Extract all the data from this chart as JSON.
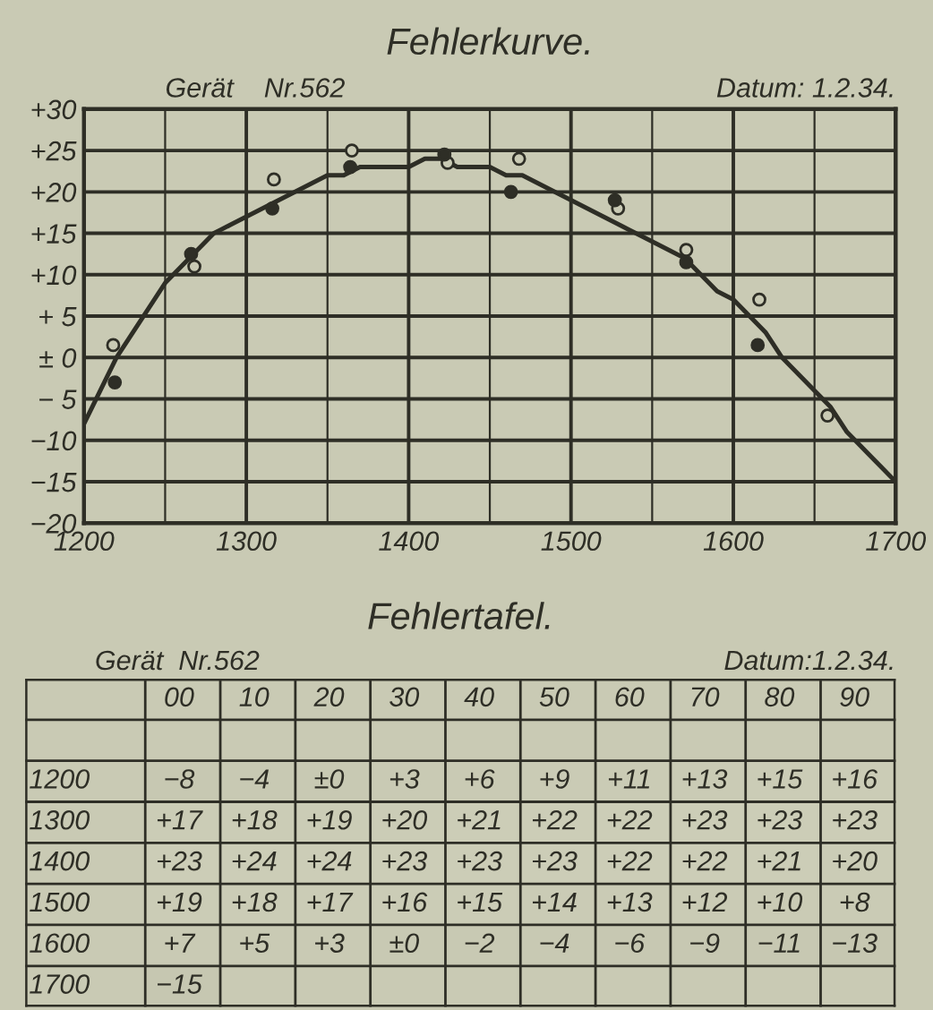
{
  "chart_data": [
    {
      "type": "line",
      "title": "Fehlerkurve.",
      "annotations": [
        "Gerät    Nr.562",
        "Datum: 1.2.34."
      ],
      "xlim": [
        1200,
        1700
      ],
      "xticks": [
        1200,
        1300,
        1400,
        1500,
        1600,
        1700
      ],
      "ylim": [
        -20,
        30
      ],
      "yticks": [
        {
          "value": 30,
          "label": "+30"
        },
        {
          "value": 25,
          "label": "+25"
        },
        {
          "value": 20,
          "label": "+20"
        },
        {
          "value": 15,
          "label": "+15"
        },
        {
          "value": 10,
          "label": "+10"
        },
        {
          "value": 5,
          "label": "+ 5"
        },
        {
          "value": 0,
          "label": "± 0"
        },
        {
          "value": -5,
          "label": "− 5"
        },
        {
          "value": -10,
          "label": "−10"
        },
        {
          "value": -15,
          "label": "−15"
        },
        {
          "value": -20,
          "label": "−20"
        }
      ],
      "grid": true,
      "series": [
        {
          "type": "line",
          "color": "#2e2e26",
          "marker": "none",
          "line_style": "solid",
          "x": [
            1200,
            1210,
            1220,
            1230,
            1240,
            1250,
            1260,
            1270,
            1280,
            1290,
            1300,
            1310,
            1320,
            1330,
            1340,
            1350,
            1360,
            1370,
            1380,
            1390,
            1400,
            1410,
            1420,
            1430,
            1440,
            1450,
            1460,
            1470,
            1480,
            1490,
            1500,
            1510,
            1520,
            1530,
            1540,
            1550,
            1560,
            1570,
            1580,
            1590,
            1600,
            1610,
            1620,
            1630,
            1640,
            1650,
            1660,
            1670,
            1680,
            1690,
            1700
          ],
          "values": [
            -8,
            -4,
            0,
            3,
            6,
            9,
            11,
            13,
            15,
            16,
            17,
            18,
            19,
            20,
            21,
            22,
            22,
            23,
            23,
            23,
            23,
            24,
            24,
            23,
            23,
            23,
            22,
            22,
            21,
            20,
            19,
            18,
            17,
            16,
            15,
            14,
            13,
            12,
            10,
            8,
            7,
            5,
            3,
            0,
            -2,
            -4,
            -6,
            -9,
            -11,
            -13,
            -15
          ]
        },
        {
          "type": "scatter",
          "color": "#2e2e26",
          "marker": "circle",
          "x": [
            1218,
            1268,
            1317,
            1365,
            1424,
            1468,
            1529,
            1571,
            1616,
            1658
          ],
          "values": [
            1.5,
            11,
            21.5,
            25,
            23.5,
            24,
            18,
            13,
            7,
            -7
          ]
        },
        {
          "type": "scatter",
          "color": "#2e2e26",
          "marker": "circle",
          "x": [
            1219,
            1266,
            1316,
            1364,
            1422,
            1463,
            1527,
            1571,
            1615
          ],
          "values": [
            -3,
            12.5,
            18,
            23,
            24.5,
            20,
            19,
            11.5,
            1.5
          ]
        }
      ]
    },
    {
      "type": "heatmap",
      "title": "Fehlertafel.",
      "annotations": [
        "Gerät  Nr.562",
        "Datum:1.2.34."
      ],
      "categories": [
        "00",
        "10",
        "20",
        "30",
        "40",
        "50",
        "60",
        "70",
        "80",
        "90"
      ],
      "y_categories": [
        "1200",
        "1300",
        "1400",
        "1500",
        "1600",
        "1700"
      ],
      "cells": [
        [
          -8,
          -4,
          0,
          3,
          6,
          9,
          11,
          13,
          15,
          16
        ],
        [
          17,
          18,
          19,
          20,
          21,
          22,
          22,
          23,
          23,
          23
        ],
        [
          23,
          24,
          24,
          23,
          23,
          23,
          22,
          22,
          21,
          20
        ],
        [
          19,
          18,
          17,
          16,
          15,
          14,
          13,
          12,
          10,
          8
        ],
        [
          7,
          5,
          3,
          0,
          -2,
          -4,
          -6,
          -9,
          -11,
          -13
        ],
        [
          -15,
          null,
          null,
          null,
          null,
          null,
          null,
          null,
          null,
          null
        ]
      ],
      "cell_labels": [
        [
          "−8",
          "−4",
          "±0",
          "+3",
          "+6",
          "+9",
          "+11",
          "+13",
          "+15",
          "+16"
        ],
        [
          "+17",
          "+18",
          "+19",
          "+20",
          "+21",
          "+22",
          "+22",
          "+23",
          "+23",
          "+23"
        ],
        [
          "+23",
          "+24",
          "+24",
          "+23",
          "+23",
          "+23",
          "+22",
          "+22",
          "+21",
          "+20"
        ],
        [
          "+19",
          "+18",
          "+17",
          "+16",
          "+15",
          "+14",
          "+13",
          "+12",
          "+10",
          "+8"
        ],
        [
          "+7",
          "+5",
          "+3",
          "±0",
          "−2",
          "−4",
          "−6",
          "−9",
          "−11",
          "−13"
        ],
        [
          "−15",
          null,
          null,
          null,
          null,
          null,
          null,
          null,
          null,
          null
        ]
      ]
    }
  ]
}
